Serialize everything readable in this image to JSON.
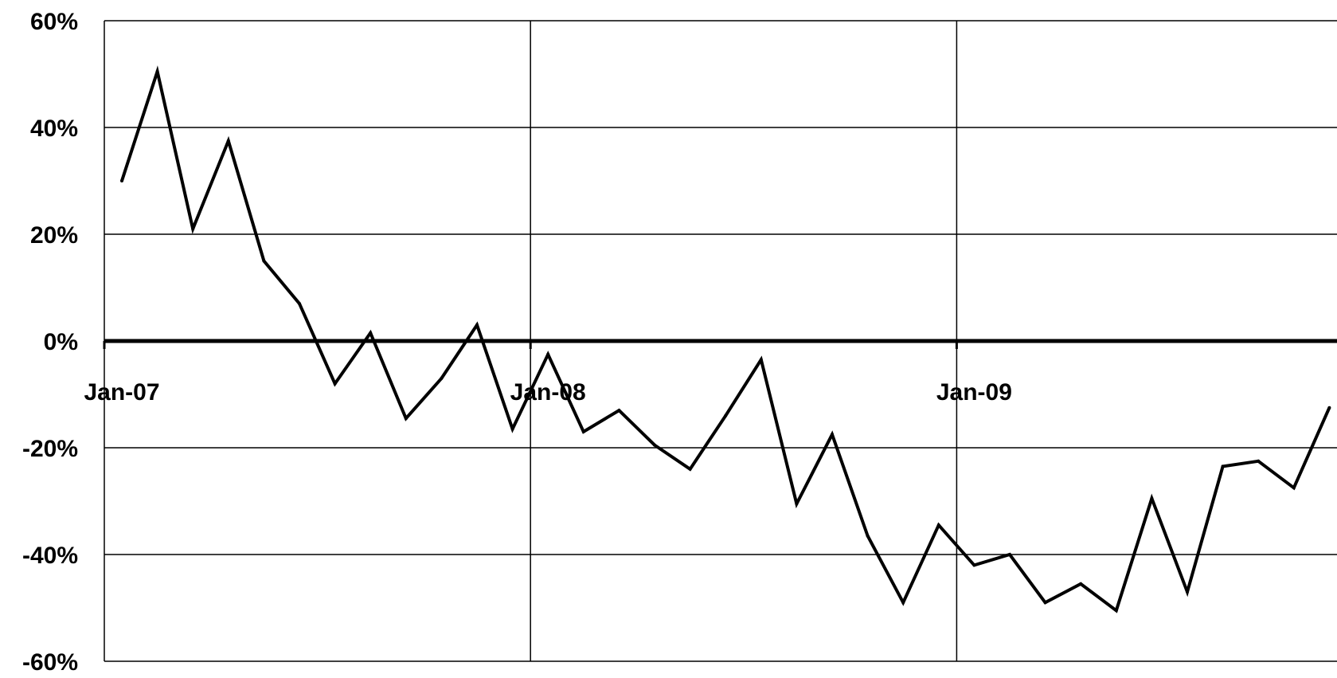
{
  "chart_data": {
    "type": "line",
    "title": "",
    "xlabel": "",
    "ylabel": "",
    "ylim": [
      -60,
      60
    ],
    "y_unit": "%",
    "grid": true,
    "yticks": [
      60,
      40,
      20,
      0,
      -20,
      -40,
      -60
    ],
    "y_tick_labels": [
      "60%",
      "40%",
      "20%",
      "0%",
      "-20%",
      "-40%",
      "-60%"
    ],
    "x_tick_labels": [
      "Jan-07",
      "Jan-08",
      "Jan-09"
    ],
    "colors": {
      "line": "#000000",
      "grid": "#000000",
      "background": "#ffffff"
    },
    "series": [
      {
        "x": [
          "2007-01",
          "2007-02",
          "2007-03",
          "2007-04",
          "2007-05",
          "2007-06",
          "2007-07",
          "2007-08",
          "2007-09",
          "2007-10",
          "2007-11",
          "2007-12",
          "2008-01",
          "2008-02",
          "2008-03",
          "2008-04",
          "2008-05",
          "2008-06",
          "2008-07",
          "2008-08",
          "2008-09",
          "2008-10",
          "2008-11",
          "2008-12",
          "2009-01",
          "2009-02",
          "2009-03",
          "2009-04",
          "2009-05",
          "2009-06",
          "2009-07",
          "2009-08",
          "2009-09",
          "2009-10",
          "2009-11"
        ],
        "values": [
          30,
          50.5,
          21,
          37.5,
          15,
          7,
          -8,
          1.5,
          -14.5,
          -7,
          3,
          -16.5,
          -2.5,
          -17,
          -13,
          -19.5,
          -24,
          -14,
          -3.5,
          -30.5,
          -17.5,
          -36.5,
          -49,
          -34.5,
          -42,
          -40,
          -49,
          -45.5,
          -50.5,
          -29.5,
          -47,
          -23.5,
          -22.5,
          -27.5,
          -12.5
        ]
      }
    ]
  }
}
